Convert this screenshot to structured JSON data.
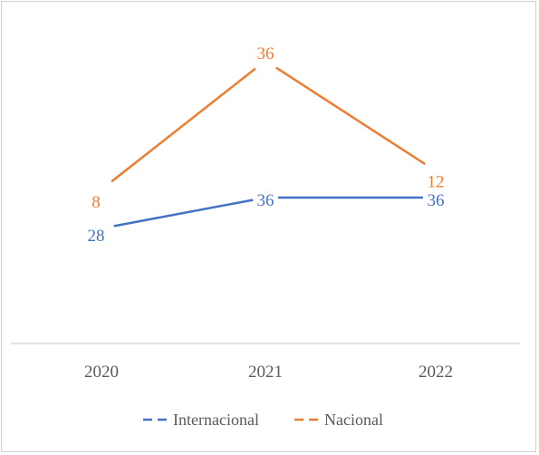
{
  "chart_data": {
    "type": "line",
    "title": "",
    "xlabel": "",
    "ylabel": "",
    "categories": [
      "2020",
      "2021",
      "2022"
    ],
    "ylim": [
      0,
      40
    ],
    "grid": false,
    "legend_position": "bottom",
    "series": [
      {
        "name": "Internacional",
        "values": [
          28,
          36,
          36
        ],
        "labels": [
          "28",
          "36",
          "36"
        ],
        "color": "#4472C4"
      },
      {
        "name": "Nacional",
        "values": [
          8,
          36,
          12
        ],
        "labels": [
          "8",
          "36",
          "12"
        ],
        "color": "#ED7D31"
      }
    ]
  }
}
